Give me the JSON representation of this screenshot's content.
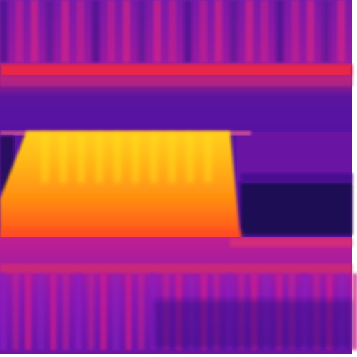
{
  "image": {
    "kind": "thermal-infrared-photo",
    "palette": "ironbow",
    "colors": {
      "cold": "#1a0b5a",
      "cool": "#4a1090",
      "mid": "#8a20c0",
      "warm": "#d0208a",
      "warmer": "#f03050",
      "hot": "#ff6a10",
      "hotter": "#ff9a10",
      "hottest": "#ffe020",
      "border": "#ffffff"
    },
    "regions": [
      "top-striped-band",
      "red-hot-line",
      "purple-middle-band",
      "hot-trapezoid-object",
      "dark-right-box",
      "bottom-striped-band"
    ]
  }
}
